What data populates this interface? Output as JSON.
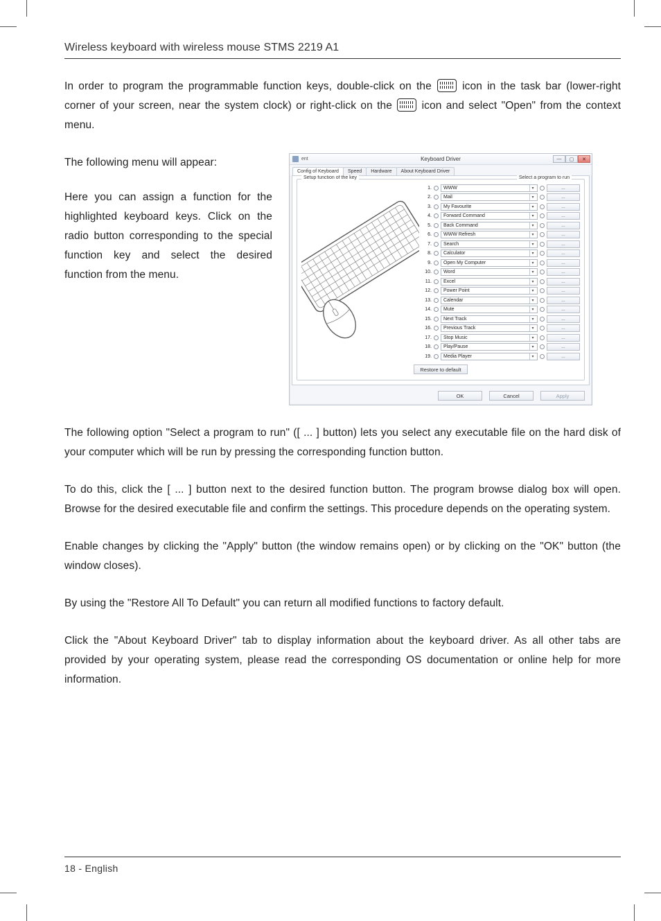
{
  "header": {
    "title": "Wireless keyboard with wireless mouse STMS 2219 A1"
  },
  "body": {
    "p1a": "In order to program the programmable function keys, double-click on the ",
    "p1b": " icon in the task bar (lower-right corner of your screen, near the system clock) or right-click on the ",
    "p1c": " icon and select \"Open\" from the context menu.",
    "p2": "The following menu will appear:",
    "p3": "Here you can assign a function for the highlighted keyboard keys. Click on the radio button corresponding to the special function key and select the desired function from the menu.",
    "p4": "The following option \"Select a program to run\" ([ ... ] button) lets you select any executable file on the hard disk of your computer which will be run by pressing the corresponding function button.",
    "p5": "To do this, click the [ ... ] button next to the desired function button. The program browse dialog box will open. Browse for the desired executable file and confirm the settings. This procedure depends on the operating system.",
    "p6": "Enable changes by clicking the \"Apply\" button (the window remains open) or by clicking on the \"OK\" button (the window closes).",
    "p7": "By using the \"Restore All To Default\" you can return all modified functions to factory default.",
    "p8": "Click the \"About Keyboard Driver\" tab to display information about the keyboard driver. As all other tabs are provided by your operating system, please read the corresponding OS documentation or online help for more information."
  },
  "footer": {
    "page": "18  -  English"
  },
  "dialog": {
    "app_label": "ent",
    "title": "Keyboard Driver",
    "tabs": [
      "Config of Keyboard",
      "Speed",
      "Hardware",
      "About Keyboard Driver"
    ],
    "group_legend": "Setup function of the key",
    "right_legend": "Select a program to run",
    "rows": [
      {
        "n": "1.",
        "label": "WWW"
      },
      {
        "n": "2.",
        "label": "Mail"
      },
      {
        "n": "3.",
        "label": "My Favourite"
      },
      {
        "n": "4.",
        "label": "Forward Command"
      },
      {
        "n": "5.",
        "label": "Back Command"
      },
      {
        "n": "6.",
        "label": "WWW Refresh"
      },
      {
        "n": "7.",
        "label": "Search"
      },
      {
        "n": "8.",
        "label": "Calculator"
      },
      {
        "n": "9.",
        "label": "Open My Computer"
      },
      {
        "n": "10.",
        "label": "Word"
      },
      {
        "n": "11.",
        "label": "Excel"
      },
      {
        "n": "12.",
        "label": "Power Point"
      },
      {
        "n": "13.",
        "label": "Calendar"
      },
      {
        "n": "14.",
        "label": "Mute"
      },
      {
        "n": "15.",
        "label": "Next Track"
      },
      {
        "n": "16.",
        "label": "Previous Track"
      },
      {
        "n": "17.",
        "label": "Stop Music"
      },
      {
        "n": "18.",
        "label": "Play/Pause"
      },
      {
        "n": "19.",
        "label": "Media Player"
      }
    ],
    "restore": "Restore to default",
    "ok": "OK",
    "cancel": "Cancel",
    "apply": "Apply",
    "browse": "...",
    "caret": "▾"
  }
}
